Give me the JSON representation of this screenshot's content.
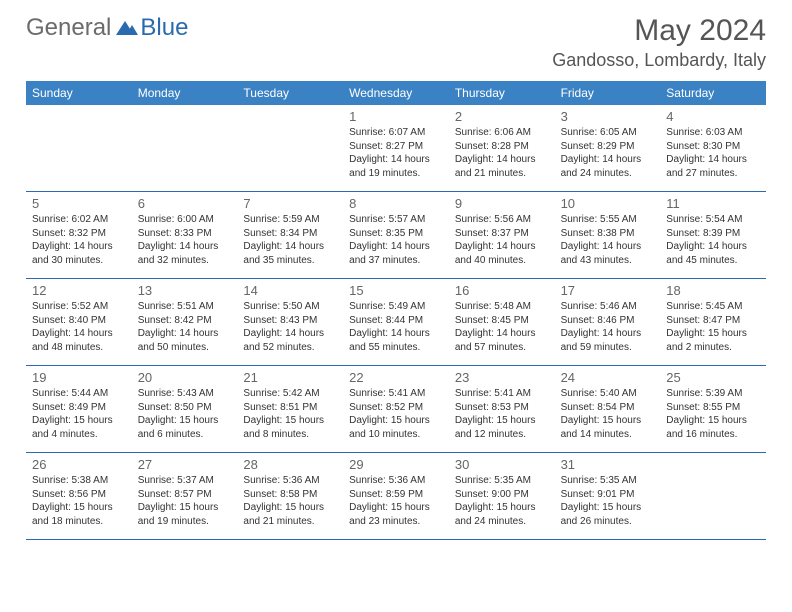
{
  "logo": {
    "general": "General",
    "blue": "Blue"
  },
  "header": {
    "title": "May 2024",
    "location": "Gandosso, Lombardy, Italy"
  },
  "colors": {
    "header_bg": "#3b82c4",
    "border": "#2a6bb0"
  },
  "dayNames": [
    "Sunday",
    "Monday",
    "Tuesday",
    "Wednesday",
    "Thursday",
    "Friday",
    "Saturday"
  ],
  "weeks": [
    [
      {},
      {},
      {},
      {
        "num": "1",
        "sunrise": "Sunrise: 6:07 AM",
        "sunset": "Sunset: 8:27 PM",
        "day1": "Daylight: 14 hours",
        "day2": "and 19 minutes."
      },
      {
        "num": "2",
        "sunrise": "Sunrise: 6:06 AM",
        "sunset": "Sunset: 8:28 PM",
        "day1": "Daylight: 14 hours",
        "day2": "and 21 minutes."
      },
      {
        "num": "3",
        "sunrise": "Sunrise: 6:05 AM",
        "sunset": "Sunset: 8:29 PM",
        "day1": "Daylight: 14 hours",
        "day2": "and 24 minutes."
      },
      {
        "num": "4",
        "sunrise": "Sunrise: 6:03 AM",
        "sunset": "Sunset: 8:30 PM",
        "day1": "Daylight: 14 hours",
        "day2": "and 27 minutes."
      }
    ],
    [
      {
        "num": "5",
        "sunrise": "Sunrise: 6:02 AM",
        "sunset": "Sunset: 8:32 PM",
        "day1": "Daylight: 14 hours",
        "day2": "and 30 minutes."
      },
      {
        "num": "6",
        "sunrise": "Sunrise: 6:00 AM",
        "sunset": "Sunset: 8:33 PM",
        "day1": "Daylight: 14 hours",
        "day2": "and 32 minutes."
      },
      {
        "num": "7",
        "sunrise": "Sunrise: 5:59 AM",
        "sunset": "Sunset: 8:34 PM",
        "day1": "Daylight: 14 hours",
        "day2": "and 35 minutes."
      },
      {
        "num": "8",
        "sunrise": "Sunrise: 5:57 AM",
        "sunset": "Sunset: 8:35 PM",
        "day1": "Daylight: 14 hours",
        "day2": "and 37 minutes."
      },
      {
        "num": "9",
        "sunrise": "Sunrise: 5:56 AM",
        "sunset": "Sunset: 8:37 PM",
        "day1": "Daylight: 14 hours",
        "day2": "and 40 minutes."
      },
      {
        "num": "10",
        "sunrise": "Sunrise: 5:55 AM",
        "sunset": "Sunset: 8:38 PM",
        "day1": "Daylight: 14 hours",
        "day2": "and 43 minutes."
      },
      {
        "num": "11",
        "sunrise": "Sunrise: 5:54 AM",
        "sunset": "Sunset: 8:39 PM",
        "day1": "Daylight: 14 hours",
        "day2": "and 45 minutes."
      }
    ],
    [
      {
        "num": "12",
        "sunrise": "Sunrise: 5:52 AM",
        "sunset": "Sunset: 8:40 PM",
        "day1": "Daylight: 14 hours",
        "day2": "and 48 minutes."
      },
      {
        "num": "13",
        "sunrise": "Sunrise: 5:51 AM",
        "sunset": "Sunset: 8:42 PM",
        "day1": "Daylight: 14 hours",
        "day2": "and 50 minutes."
      },
      {
        "num": "14",
        "sunrise": "Sunrise: 5:50 AM",
        "sunset": "Sunset: 8:43 PM",
        "day1": "Daylight: 14 hours",
        "day2": "and 52 minutes."
      },
      {
        "num": "15",
        "sunrise": "Sunrise: 5:49 AM",
        "sunset": "Sunset: 8:44 PM",
        "day1": "Daylight: 14 hours",
        "day2": "and 55 minutes."
      },
      {
        "num": "16",
        "sunrise": "Sunrise: 5:48 AM",
        "sunset": "Sunset: 8:45 PM",
        "day1": "Daylight: 14 hours",
        "day2": "and 57 minutes."
      },
      {
        "num": "17",
        "sunrise": "Sunrise: 5:46 AM",
        "sunset": "Sunset: 8:46 PM",
        "day1": "Daylight: 14 hours",
        "day2": "and 59 minutes."
      },
      {
        "num": "18",
        "sunrise": "Sunrise: 5:45 AM",
        "sunset": "Sunset: 8:47 PM",
        "day1": "Daylight: 15 hours",
        "day2": "and 2 minutes."
      }
    ],
    [
      {
        "num": "19",
        "sunrise": "Sunrise: 5:44 AM",
        "sunset": "Sunset: 8:49 PM",
        "day1": "Daylight: 15 hours",
        "day2": "and 4 minutes."
      },
      {
        "num": "20",
        "sunrise": "Sunrise: 5:43 AM",
        "sunset": "Sunset: 8:50 PM",
        "day1": "Daylight: 15 hours",
        "day2": "and 6 minutes."
      },
      {
        "num": "21",
        "sunrise": "Sunrise: 5:42 AM",
        "sunset": "Sunset: 8:51 PM",
        "day1": "Daylight: 15 hours",
        "day2": "and 8 minutes."
      },
      {
        "num": "22",
        "sunrise": "Sunrise: 5:41 AM",
        "sunset": "Sunset: 8:52 PM",
        "day1": "Daylight: 15 hours",
        "day2": "and 10 minutes."
      },
      {
        "num": "23",
        "sunrise": "Sunrise: 5:41 AM",
        "sunset": "Sunset: 8:53 PM",
        "day1": "Daylight: 15 hours",
        "day2": "and 12 minutes."
      },
      {
        "num": "24",
        "sunrise": "Sunrise: 5:40 AM",
        "sunset": "Sunset: 8:54 PM",
        "day1": "Daylight: 15 hours",
        "day2": "and 14 minutes."
      },
      {
        "num": "25",
        "sunrise": "Sunrise: 5:39 AM",
        "sunset": "Sunset: 8:55 PM",
        "day1": "Daylight: 15 hours",
        "day2": "and 16 minutes."
      }
    ],
    [
      {
        "num": "26",
        "sunrise": "Sunrise: 5:38 AM",
        "sunset": "Sunset: 8:56 PM",
        "day1": "Daylight: 15 hours",
        "day2": "and 18 minutes."
      },
      {
        "num": "27",
        "sunrise": "Sunrise: 5:37 AM",
        "sunset": "Sunset: 8:57 PM",
        "day1": "Daylight: 15 hours",
        "day2": "and 19 minutes."
      },
      {
        "num": "28",
        "sunrise": "Sunrise: 5:36 AM",
        "sunset": "Sunset: 8:58 PM",
        "day1": "Daylight: 15 hours",
        "day2": "and 21 minutes."
      },
      {
        "num": "29",
        "sunrise": "Sunrise: 5:36 AM",
        "sunset": "Sunset: 8:59 PM",
        "day1": "Daylight: 15 hours",
        "day2": "and 23 minutes."
      },
      {
        "num": "30",
        "sunrise": "Sunrise: 5:35 AM",
        "sunset": "Sunset: 9:00 PM",
        "day1": "Daylight: 15 hours",
        "day2": "and 24 minutes."
      },
      {
        "num": "31",
        "sunrise": "Sunrise: 5:35 AM",
        "sunset": "Sunset: 9:01 PM",
        "day1": "Daylight: 15 hours",
        "day2": "and 26 minutes."
      },
      {}
    ]
  ]
}
